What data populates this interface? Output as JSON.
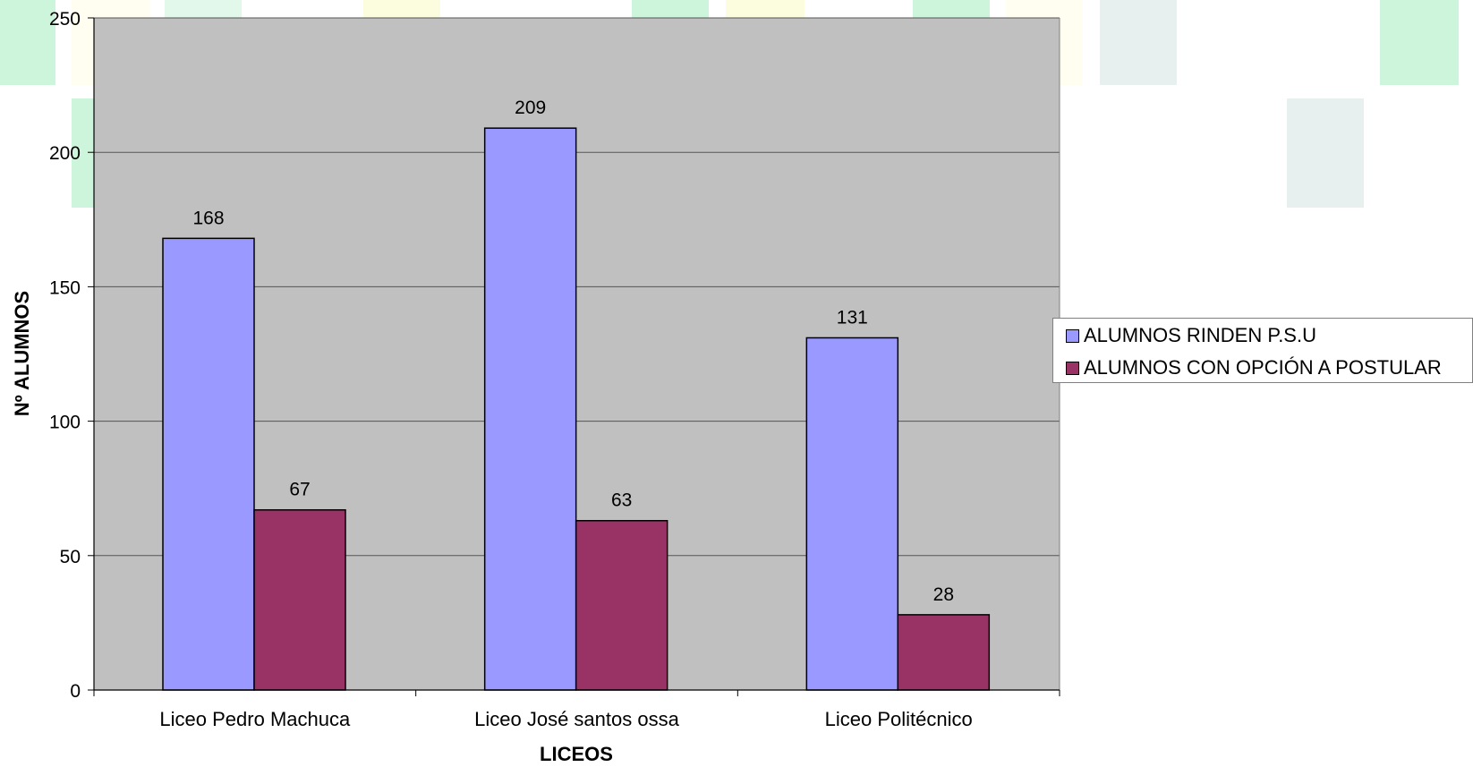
{
  "colors": {
    "plot_background": "#c0c0c0",
    "grid": "#555555"
  },
  "chart_data": {
    "type": "bar",
    "categories": [
      "Liceo Pedro Machuca",
      "Liceo José santos ossa",
      "Liceo Politécnico"
    ],
    "series": [
      {
        "name": "ALUMNOS RINDEN P.S.U",
        "values": [
          168,
          209,
          131
        ],
        "color": "#9999ff"
      },
      {
        "name": "ALUMNOS CON OPCIÓN A POSTULAR",
        "values": [
          67,
          63,
          28
        ],
        "color": "#993366"
      }
    ],
    "xlabel": "LICEOS",
    "ylabel": "Nº ALUMNOS",
    "ylim": [
      0,
      250
    ],
    "yticks": [
      0,
      50,
      100,
      150,
      200,
      250
    ],
    "grid": true,
    "legend": "right",
    "data_labels": true
  }
}
